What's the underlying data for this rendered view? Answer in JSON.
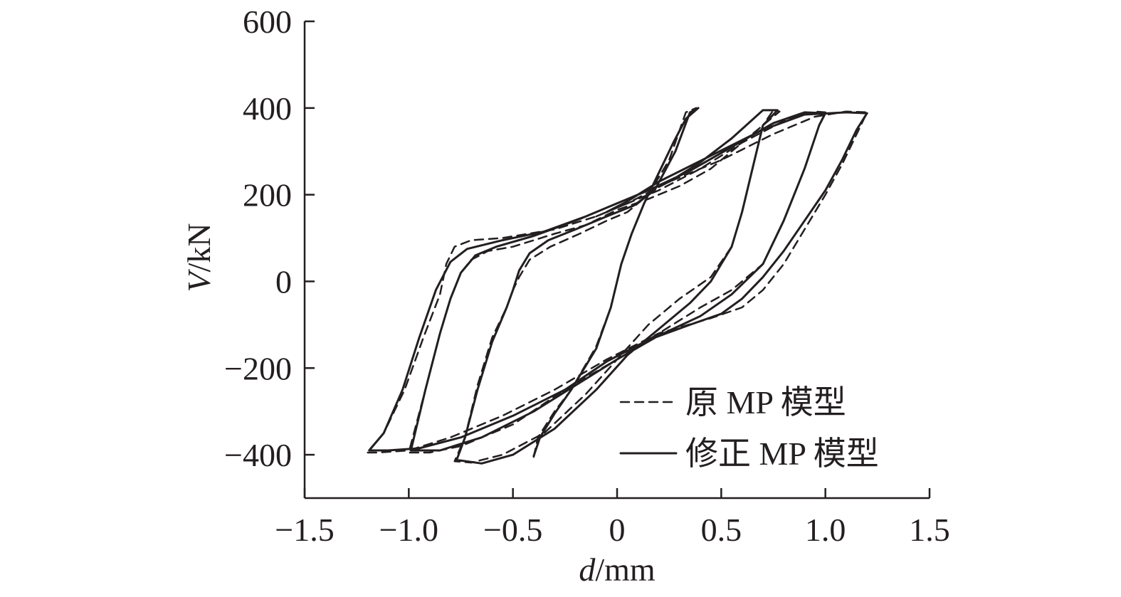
{
  "chart_data": {
    "type": "line",
    "title": "",
    "xlabel": {
      "var": "d",
      "unit": "/mm"
    },
    "ylabel": {
      "var": "V",
      "unit": "/kN"
    },
    "xlim": [
      -1.5,
      1.5
    ],
    "ylim": [
      -500,
      600
    ],
    "x_ticks": [
      -1.5,
      -1.0,
      -0.5,
      0,
      0.5,
      1.0,
      1.5
    ],
    "x_tick_labels": [
      "−1.5",
      "−1.0",
      "−0.5",
      "0",
      "0.5",
      "1.0",
      "1.5"
    ],
    "y_ticks": [
      -400,
      -200,
      0,
      200,
      400,
      600
    ],
    "y_tick_labels": [
      "−400",
      "−200",
      "0",
      "200",
      "400",
      "600"
    ],
    "grid": false,
    "legend_position": "bottom-right",
    "series": [
      {
        "name": "原 MP 模型",
        "style": "dashed",
        "points": [
          [
            -0.4,
            -405
          ],
          [
            -0.38,
            -360
          ],
          [
            -0.3,
            -300
          ],
          [
            -0.22,
            -250
          ],
          [
            -0.1,
            -150
          ],
          [
            -0.03,
            -60
          ],
          [
            0.02,
            40
          ],
          [
            0.07,
            110
          ],
          [
            0.13,
            180
          ],
          [
            0.2,
            250
          ],
          [
            0.27,
            320
          ],
          [
            0.33,
            375
          ],
          [
            0.38,
            400
          ],
          [
            0.33,
            390
          ],
          [
            0.25,
            280
          ],
          [
            0.15,
            200
          ],
          [
            0.05,
            160
          ],
          [
            -0.05,
            140
          ],
          [
            -0.18,
            110
          ],
          [
            -0.32,
            80
          ],
          [
            -0.42,
            50
          ],
          [
            -0.47,
            10
          ],
          [
            -0.5,
            -20
          ],
          [
            -0.53,
            -60
          ],
          [
            -0.6,
            -130
          ],
          [
            -0.67,
            -240
          ],
          [
            -0.73,
            -360
          ],
          [
            -0.78,
            -415
          ],
          [
            -0.7,
            -418
          ],
          [
            -0.55,
            -400
          ],
          [
            -0.35,
            -350
          ],
          [
            -0.15,
            -260
          ],
          [
            0,
            -180
          ],
          [
            0.15,
            -100
          ],
          [
            0.3,
            -40
          ],
          [
            0.45,
            10
          ],
          [
            0.55,
            80
          ],
          [
            0.6,
            160
          ],
          [
            0.65,
            260
          ],
          [
            0.7,
            360
          ],
          [
            0.75,
            395
          ],
          [
            0.78,
            392
          ],
          [
            0.6,
            320
          ],
          [
            0.45,
            260
          ],
          [
            0.3,
            220
          ],
          [
            0.15,
            190
          ],
          [
            0,
            165
          ],
          [
            -0.15,
            130
          ],
          [
            -0.3,
            110
          ],
          [
            -0.5,
            80
          ],
          [
            -0.62,
            70
          ],
          [
            -0.7,
            50
          ],
          [
            -0.75,
            20
          ],
          [
            -0.8,
            -40
          ],
          [
            -0.85,
            -120
          ],
          [
            -0.92,
            -250
          ],
          [
            -1.0,
            -395
          ],
          [
            -0.9,
            -395
          ],
          [
            -0.75,
            -380
          ],
          [
            -0.5,
            -330
          ],
          [
            -0.25,
            -250
          ],
          [
            0,
            -180
          ],
          [
            0.2,
            -120
          ],
          [
            0.4,
            -60
          ],
          [
            0.55,
            -20
          ],
          [
            0.7,
            40
          ],
          [
            0.8,
            140
          ],
          [
            0.9,
            260
          ],
          [
            0.97,
            360
          ],
          [
            1.0,
            390
          ],
          [
            0.95,
            392
          ],
          [
            0.8,
            370
          ],
          [
            0.6,
            320
          ],
          [
            0.4,
            260
          ],
          [
            0.2,
            210
          ],
          [
            0.05,
            180
          ],
          [
            -0.1,
            150
          ],
          [
            -0.3,
            120
          ],
          [
            -0.55,
            100
          ],
          [
            -0.7,
            95
          ],
          [
            -0.78,
            80
          ],
          [
            -0.82,
            40
          ],
          [
            -0.85,
            -30
          ],
          [
            -0.93,
            -130
          ],
          [
            -1.02,
            -250
          ],
          [
            -1.12,
            -350
          ],
          [
            -1.2,
            -395
          ],
          [
            -1.15,
            -395
          ],
          [
            -1.0,
            -390
          ],
          [
            -0.8,
            -360
          ],
          [
            -0.55,
            -310
          ],
          [
            -0.3,
            -250
          ],
          [
            -0.05,
            -180
          ],
          [
            0.2,
            -120
          ],
          [
            0.45,
            -85
          ],
          [
            0.6,
            -60
          ],
          [
            0.7,
            -20
          ],
          [
            0.8,
            40
          ],
          [
            0.9,
            120
          ],
          [
            1.0,
            200
          ],
          [
            1.08,
            270
          ],
          [
            1.15,
            340
          ],
          [
            1.2,
            390
          ],
          [
            1.1,
            392
          ],
          [
            0.95,
            380
          ],
          [
            0.75,
            340
          ],
          [
            0.5,
            280
          ],
          [
            0.25,
            230
          ],
          [
            0.05,
            180
          ],
          [
            -0.1,
            150
          ]
        ]
      },
      {
        "name": "修正 MP 模型",
        "style": "solid",
        "points": [
          [
            -0.4,
            -403
          ],
          [
            -0.37,
            -360
          ],
          [
            -0.3,
            -305
          ],
          [
            -0.22,
            -250
          ],
          [
            -0.1,
            -155
          ],
          [
            -0.03,
            -60
          ],
          [
            0.02,
            40
          ],
          [
            0.07,
            110
          ],
          [
            0.13,
            180
          ],
          [
            0.2,
            250
          ],
          [
            0.27,
            320
          ],
          [
            0.33,
            375
          ],
          [
            0.39,
            400
          ],
          [
            0.35,
            390
          ],
          [
            0.28,
            300
          ],
          [
            0.18,
            210
          ],
          [
            0.08,
            175
          ],
          [
            -0.05,
            150
          ],
          [
            -0.2,
            120
          ],
          [
            -0.33,
            95
          ],
          [
            -0.42,
            65
          ],
          [
            -0.47,
            25
          ],
          [
            -0.5,
            -20
          ],
          [
            -0.53,
            -60
          ],
          [
            -0.6,
            -140
          ],
          [
            -0.67,
            -250
          ],
          [
            -0.73,
            -360
          ],
          [
            -0.77,
            -412
          ],
          [
            -0.65,
            -420
          ],
          [
            -0.5,
            -400
          ],
          [
            -0.3,
            -340
          ],
          [
            -0.1,
            -250
          ],
          [
            0.05,
            -170
          ],
          [
            0.2,
            -110
          ],
          [
            0.35,
            -50
          ],
          [
            0.45,
            0
          ],
          [
            0.55,
            80
          ],
          [
            0.6,
            160
          ],
          [
            0.65,
            260
          ],
          [
            0.7,
            360
          ],
          [
            0.77,
            395
          ],
          [
            0.7,
            395
          ],
          [
            0.55,
            330
          ],
          [
            0.4,
            275
          ],
          [
            0.25,
            230
          ],
          [
            0.1,
            200
          ],
          [
            -0.05,
            170
          ],
          [
            -0.2,
            140
          ],
          [
            -0.4,
            105
          ],
          [
            -0.58,
            80
          ],
          [
            -0.68,
            60
          ],
          [
            -0.75,
            20
          ],
          [
            -0.8,
            -40
          ],
          [
            -0.85,
            -120
          ],
          [
            -0.92,
            -250
          ],
          [
            -0.99,
            -390
          ],
          [
            -0.85,
            -390
          ],
          [
            -0.65,
            -360
          ],
          [
            -0.4,
            -300
          ],
          [
            -0.2,
            -240
          ],
          [
            0,
            -180
          ],
          [
            0.2,
            -125
          ],
          [
            0.4,
            -80
          ],
          [
            0.55,
            -30
          ],
          [
            0.7,
            40
          ],
          [
            0.8,
            140
          ],
          [
            0.9,
            260
          ],
          [
            0.97,
            360
          ],
          [
            1.0,
            388
          ],
          [
            0.9,
            390
          ],
          [
            0.75,
            365
          ],
          [
            0.55,
            310
          ],
          [
            0.35,
            255
          ],
          [
            0.15,
            210
          ],
          [
            0,
            180
          ],
          [
            -0.15,
            150
          ],
          [
            -0.35,
            115
          ],
          [
            -0.55,
            95
          ],
          [
            -0.72,
            75
          ],
          [
            -0.8,
            45
          ],
          [
            -0.87,
            -20
          ],
          [
            -0.95,
            -130
          ],
          [
            -1.03,
            -250
          ],
          [
            -1.12,
            -350
          ],
          [
            -1.19,
            -390
          ],
          [
            -1.1,
            -390
          ],
          [
            -0.95,
            -385
          ],
          [
            -0.75,
            -360
          ],
          [
            -0.5,
            -310
          ],
          [
            -0.25,
            -250
          ],
          [
            -0.05,
            -185
          ],
          [
            0.15,
            -135
          ],
          [
            0.35,
            -100
          ],
          [
            0.5,
            -75
          ],
          [
            0.6,
            -40
          ],
          [
            0.7,
            10
          ],
          [
            0.8,
            70
          ],
          [
            0.9,
            140
          ],
          [
            1.0,
            210
          ],
          [
            1.08,
            280
          ],
          [
            1.15,
            350
          ],
          [
            1.2,
            388
          ],
          [
            1.1,
            390
          ],
          [
            0.9,
            385
          ],
          [
            0.7,
            350
          ],
          [
            0.45,
            290
          ],
          [
            0.2,
            230
          ],
          [
            0.05,
            185
          ],
          [
            -0.05,
            160
          ]
        ]
      }
    ]
  },
  "legend": {
    "items": [
      {
        "label": "原 MP 模型",
        "style": "dashed"
      },
      {
        "label": "修正 MP 模型",
        "style": "solid"
      }
    ]
  }
}
